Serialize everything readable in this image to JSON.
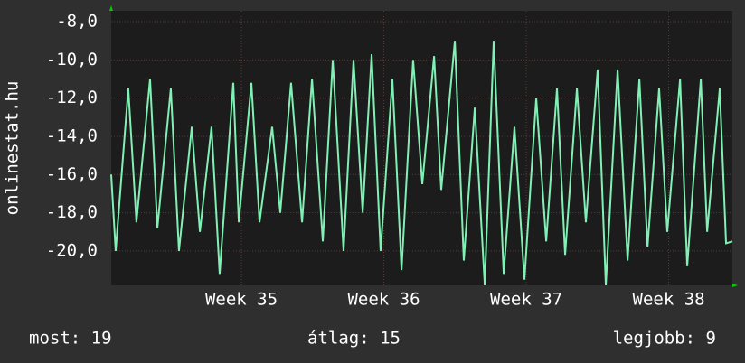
{
  "chart_data": {
    "type": "line",
    "ylabel": "onlinestat.hu",
    "footer": {
      "current": "most: 19",
      "average": "átlag: 15",
      "best": "legjobb: 9"
    },
    "xlim": [
      0,
      30.53
    ],
    "xticks": [
      {
        "value": 6.4,
        "label": "Week 35"
      },
      {
        "value": 13.4,
        "label": "Week 36"
      },
      {
        "value": 20.4,
        "label": "Week 37"
      },
      {
        "value": 27.4,
        "label": "Week 38"
      }
    ],
    "ylim": [
      -21.8,
      -7.43
    ],
    "yticks": [
      {
        "value": -8,
        "label": "-8,0"
      },
      {
        "value": -10,
        "label": "-10,0"
      },
      {
        "value": -12,
        "label": "-12,0"
      },
      {
        "value": -14,
        "label": "-14,0"
      },
      {
        "value": -16,
        "label": "-16,0"
      },
      {
        "value": -18,
        "label": "-18,0"
      },
      {
        "value": -20,
        "label": "-20,0"
      }
    ],
    "grid": true,
    "series": [
      {
        "color": "#80f0b4",
        "x": [
          0,
          0.22,
          0.84,
          1.24,
          1.91,
          2.27,
          2.93,
          3.33,
          3.96,
          4.36,
          4.93,
          5.33,
          6.0,
          6.27,
          6.89,
          7.29,
          7.91,
          8.31,
          8.84,
          9.38,
          9.87,
          10.4,
          10.89,
          11.42,
          11.91,
          12.36,
          12.8,
          13.24,
          13.82,
          14.27,
          14.84,
          15.29,
          15.87,
          16.22,
          16.89,
          17.33,
          17.87,
          18.36,
          18.8,
          19.29,
          19.82,
          20.31,
          20.89,
          21.38,
          21.91,
          22.31,
          22.89,
          23.33,
          23.91,
          24.31,
          24.89,
          25.38,
          25.96,
          26.36,
          26.93,
          27.33,
          27.96,
          28.31,
          28.98,
          29.29,
          29.91,
          30.22,
          30.53
        ],
        "values": [
          -16,
          -20,
          -11.5,
          -18.5,
          -11,
          -18.8,
          -11.5,
          -20,
          -13.5,
          -19,
          -13.5,
          -21.2,
          -11.2,
          -18.5,
          -11.2,
          -18.5,
          -13.5,
          -18,
          -11.2,
          -18.5,
          -11,
          -19.5,
          -10,
          -20,
          -10,
          -18,
          -9.7,
          -20,
          -11,
          -21,
          -10,
          -16.5,
          -9.8,
          -16.8,
          -9,
          -20.5,
          -12.5,
          -21.8,
          -9,
          -21.2,
          -13.5,
          -21.5,
          -12,
          -19.5,
          -11.5,
          -20.2,
          -11.5,
          -18.5,
          -10.5,
          -21.8,
          -10.5,
          -20.5,
          -11,
          -19.8,
          -11.5,
          -19,
          -11,
          -20.8,
          -11,
          -19,
          -11.5,
          -19.6,
          -19.5
        ]
      }
    ]
  }
}
